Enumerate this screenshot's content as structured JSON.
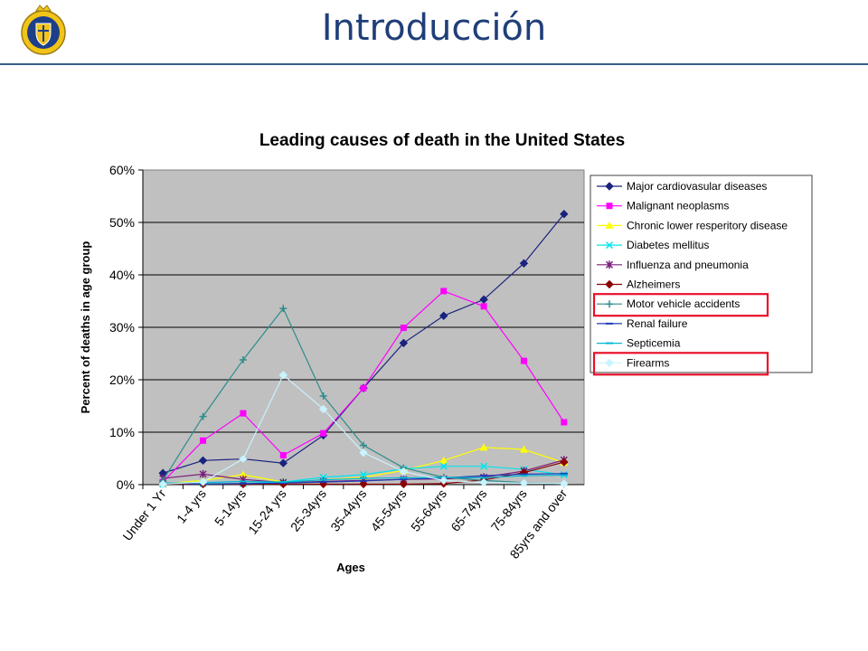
{
  "slide": {
    "title": "Introducción"
  },
  "logo": {
    "icon": "university-crest-icon"
  },
  "chart_data": {
    "type": "line",
    "title": "Leading causes of death in the United States",
    "xlabel": "Ages",
    "ylabel": "Percent of deaths in age group",
    "ylim": [
      0,
      60
    ],
    "yticks": [
      "0%",
      "10%",
      "20%",
      "30%",
      "40%",
      "50%",
      "60%"
    ],
    "grid": true,
    "legend_position": "right",
    "categories": [
      "Under 1 Yr",
      "1-4 yrs",
      "5-14yrs",
      "15-24 yrs",
      "25-34yrs",
      "35-44yrs",
      "45-54yrs",
      "55-64yrs",
      "65-74yrs",
      "75-84yrs",
      "85yrs and over"
    ],
    "series": [
      {
        "name": "Major cardiovasular diseases",
        "color": "#1a237e",
        "marker": "diamond",
        "values": [
          2.2,
          4.6,
          4.9,
          4.1,
          9.4,
          18.4,
          27.0,
          32.2,
          35.3,
          42.2,
          51.6
        ]
      },
      {
        "name": "Malignant neoplasms",
        "color": "#ff00ff",
        "marker": "square",
        "values": [
          0.5,
          8.4,
          13.6,
          5.6,
          9.8,
          18.4,
          29.9,
          36.9,
          34.0,
          23.6,
          11.9
        ]
      },
      {
        "name": "Chronic lower resperitory disease",
        "color": "#ffff00",
        "marker": "triangle",
        "values": [
          0.2,
          0.8,
          1.9,
          0.5,
          0.9,
          1.4,
          2.7,
          4.6,
          7.1,
          6.7,
          4.2
        ]
      },
      {
        "name": "Diabetes mellitus",
        "color": "#00e5ee",
        "marker": "x",
        "values": [
          0.1,
          0.2,
          0.2,
          0.5,
          1.4,
          1.9,
          3.0,
          3.5,
          3.5,
          2.9,
          1.9
        ]
      },
      {
        "name": "Influenza and pneumonia",
        "color": "#7b1f7b",
        "marker": "star",
        "values": [
          1.2,
          2.0,
          1.0,
          0.4,
          0.6,
          0.8,
          1.0,
          1.1,
          1.4,
          2.6,
          4.7
        ]
      },
      {
        "name": "Alzheimers",
        "color": "#8b0000",
        "marker": "diamond",
        "values": [
          0.1,
          0.1,
          0.1,
          0.1,
          0.1,
          0.1,
          0.1,
          0.2,
          0.9,
          2.3,
          4.3
        ]
      },
      {
        "name": "Motor vehicle accidents",
        "color": "#2e8b8b",
        "marker": "plus",
        "values": [
          0.8,
          13.0,
          23.8,
          33.6,
          16.9,
          7.5,
          3.2,
          1.4,
          0.8,
          0.4,
          0.1
        ]
      },
      {
        "name": "Renal failure",
        "color": "#1e3cb4",
        "marker": "dash",
        "values": [
          0.3,
          0.1,
          0.2,
          0.3,
          0.5,
          0.7,
          1.0,
          1.3,
          1.7,
          2.0,
          2.1
        ]
      },
      {
        "name": "Septicemia",
        "color": "#00b8d4",
        "marker": "dash",
        "values": [
          0.3,
          0.4,
          0.6,
          0.5,
          0.9,
          1.2,
          1.3,
          1.4,
          1.3,
          1.7,
          1.8
        ]
      },
      {
        "name": "Firearms",
        "color": "#c9f3ff",
        "marker": "diamond",
        "values": [
          0.1,
          0.5,
          4.9,
          20.9,
          14.4,
          6.1,
          2.5,
          0.8,
          0.4,
          0.3,
          0.2
        ]
      }
    ],
    "highlighted_series": [
      "Motor vehicle accidents",
      "Firearms"
    ],
    "highlight_color": "#e8102a",
    "plot_background": "#c0c0c0"
  }
}
